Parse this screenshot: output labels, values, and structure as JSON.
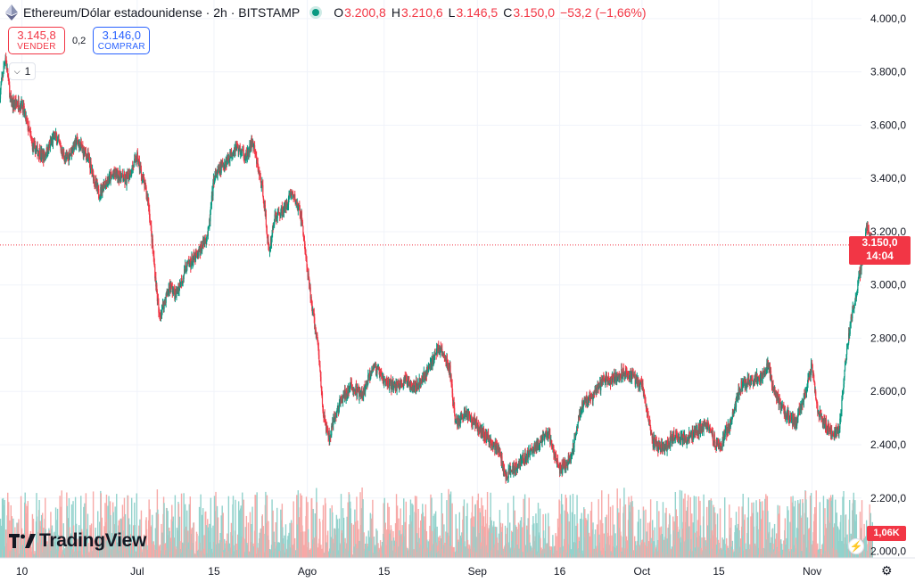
{
  "header": {
    "symbol": "Ethereum/Dólar estadounidense · 2h · BITSTAMP",
    "ohlc": [
      {
        "label": "O",
        "value": "3.200,8"
      },
      {
        "label": "H",
        "value": "3.210,6"
      },
      {
        "label": "L",
        "value": "3.146,5"
      },
      {
        "label": "C",
        "value": "3.150,0"
      },
      {
        "label": "",
        "value": "−53,2 (−1,66%)"
      }
    ],
    "status_color": "#089981"
  },
  "trade": {
    "sell_price": "3.145,8",
    "sell_label": "VENDER",
    "spread": "0,2",
    "buy_price": "3.146,0",
    "buy_label": "COMPRAR"
  },
  "indicator_toggle": {
    "count": "1"
  },
  "logo": {
    "text": "TradingView"
  },
  "price_tag": {
    "price": "3.150,0",
    "countdown": "14:04"
  },
  "volume_tag": {
    "value": "1,06K"
  },
  "colors": {
    "up": "#089981",
    "down": "#f23645",
    "up_volume": "#92d2cc",
    "down_volume": "#f7a9a7"
  },
  "icons": {
    "eth": "ethereum-icon",
    "settings": "gear-icon",
    "alert": "lightning-icon"
  },
  "chart_data": {
    "type": "candlestick",
    "title": "Ethereum/Dólar estadounidense · 2h · BITSTAMP",
    "y_ticks": [
      "4.000,0",
      "3.800,0",
      "3.600,0",
      "3.400,0",
      "3.200,0",
      "3.000,0",
      "2.800,0",
      "2.600,0",
      "2.400,0",
      "2.200,0",
      "2.000,0"
    ],
    "y_tick_values": [
      4000,
      3800,
      3600,
      3400,
      3200,
      3000,
      2800,
      2600,
      2400,
      2200,
      2000
    ],
    "ylim": [
      1975,
      4070
    ],
    "x_ticks": [
      "10",
      "Jul",
      "15",
      "Ago",
      "15",
      "Sep",
      "16",
      "Oct",
      "15",
      "Nov"
    ],
    "x_tick_dates": [
      "2024-06-10",
      "2024-07-01",
      "2024-07-15",
      "2024-08-01",
      "2024-08-15",
      "2024-09-01",
      "2024-09-16",
      "2024-10-01",
      "2024-10-15",
      "2024-11-01"
    ],
    "xlim": [
      "2024-06-06",
      "2024-11-10"
    ],
    "last_close": 3150,
    "price_path": [
      [
        "2024-06-06",
        3720
      ],
      [
        "2024-06-07",
        3860
      ],
      [
        "2024-06-08",
        3680
      ],
      [
        "2024-06-10",
        3680
      ],
      [
        "2024-06-12",
        3520
      ],
      [
        "2024-06-14",
        3480
      ],
      [
        "2024-06-16",
        3560
      ],
      [
        "2024-06-18",
        3470
      ],
      [
        "2024-06-20",
        3540
      ],
      [
        "2024-06-22",
        3480
      ],
      [
        "2024-06-24",
        3340
      ],
      [
        "2024-06-25",
        3380
      ],
      [
        "2024-06-27",
        3420
      ],
      [
        "2024-06-29",
        3390
      ],
      [
        "2024-07-01",
        3480
      ],
      [
        "2024-07-03",
        3320
      ],
      [
        "2024-07-04",
        3100
      ],
      [
        "2024-07-05",
        2880
      ],
      [
        "2024-07-07",
        3000
      ],
      [
        "2024-07-08",
        2960
      ],
      [
        "2024-07-10",
        3070
      ],
      [
        "2024-07-12",
        3110
      ],
      [
        "2024-07-14",
        3200
      ],
      [
        "2024-07-15",
        3400
      ],
      [
        "2024-07-17",
        3460
      ],
      [
        "2024-07-19",
        3520
      ],
      [
        "2024-07-21",
        3480
      ],
      [
        "2024-07-22",
        3540
      ],
      [
        "2024-07-24",
        3340
      ],
      [
        "2024-07-25",
        3120
      ],
      [
        "2024-07-26",
        3250
      ],
      [
        "2024-07-28",
        3290
      ],
      [
        "2024-07-29",
        3350
      ],
      [
        "2024-07-30",
        3310
      ],
      [
        "2024-07-31",
        3250
      ],
      [
        "2024-08-01",
        3050
      ],
      [
        "2024-08-02",
        2900
      ],
      [
        "2024-08-03",
        2760
      ],
      [
        "2024-08-04",
        2500
      ],
      [
        "2024-08-05",
        2420
      ],
      [
        "2024-08-06",
        2500
      ],
      [
        "2024-08-07",
        2560
      ],
      [
        "2024-08-09",
        2620
      ],
      [
        "2024-08-11",
        2580
      ],
      [
        "2024-08-13",
        2700
      ],
      [
        "2024-08-15",
        2640
      ],
      [
        "2024-08-17",
        2620
      ],
      [
        "2024-08-19",
        2640
      ],
      [
        "2024-08-21",
        2620
      ],
      [
        "2024-08-23",
        2680
      ],
      [
        "2024-08-25",
        2770
      ],
      [
        "2024-08-27",
        2680
      ],
      [
        "2024-08-28",
        2480
      ],
      [
        "2024-08-30",
        2520
      ],
      [
        "2024-09-01",
        2470
      ],
      [
        "2024-09-03",
        2420
      ],
      [
        "2024-09-05",
        2380
      ],
      [
        "2024-09-06",
        2280
      ],
      [
        "2024-09-08",
        2320
      ],
      [
        "2024-09-10",
        2360
      ],
      [
        "2024-09-12",
        2400
      ],
      [
        "2024-09-14",
        2440
      ],
      [
        "2024-09-16",
        2300
      ],
      [
        "2024-09-18",
        2350
      ],
      [
        "2024-09-20",
        2550
      ],
      [
        "2024-09-22",
        2580
      ],
      [
        "2024-09-24",
        2640
      ],
      [
        "2024-09-26",
        2650
      ],
      [
        "2024-09-28",
        2680
      ],
      [
        "2024-09-30",
        2640
      ],
      [
        "2024-10-01",
        2620
      ],
      [
        "2024-10-03",
        2410
      ],
      [
        "2024-10-05",
        2380
      ],
      [
        "2024-10-07",
        2440
      ],
      [
        "2024-10-09",
        2420
      ],
      [
        "2024-10-11",
        2450
      ],
      [
        "2024-10-13",
        2480
      ],
      [
        "2024-10-15",
        2380
      ],
      [
        "2024-10-17",
        2480
      ],
      [
        "2024-10-19",
        2620
      ],
      [
        "2024-10-21",
        2640
      ],
      [
        "2024-10-23",
        2660
      ],
      [
        "2024-10-24",
        2700
      ],
      [
        "2024-10-25",
        2600
      ],
      [
        "2024-10-27",
        2520
      ],
      [
        "2024-10-29",
        2480
      ],
      [
        "2024-10-31",
        2620
      ],
      [
        "2024-11-01",
        2700
      ],
      [
        "2024-11-02",
        2520
      ],
      [
        "2024-11-04",
        2460
      ],
      [
        "2024-11-05",
        2440
      ],
      [
        "2024-11-06",
        2460
      ],
      [
        "2024-11-07",
        2700
      ],
      [
        "2024-11-08",
        2860
      ],
      [
        "2024-11-09",
        2960
      ],
      [
        "2024-11-10",
        3080
      ],
      [
        "2024-11-11",
        3220
      ],
      [
        "2024-11-12",
        3150
      ]
    ]
  }
}
